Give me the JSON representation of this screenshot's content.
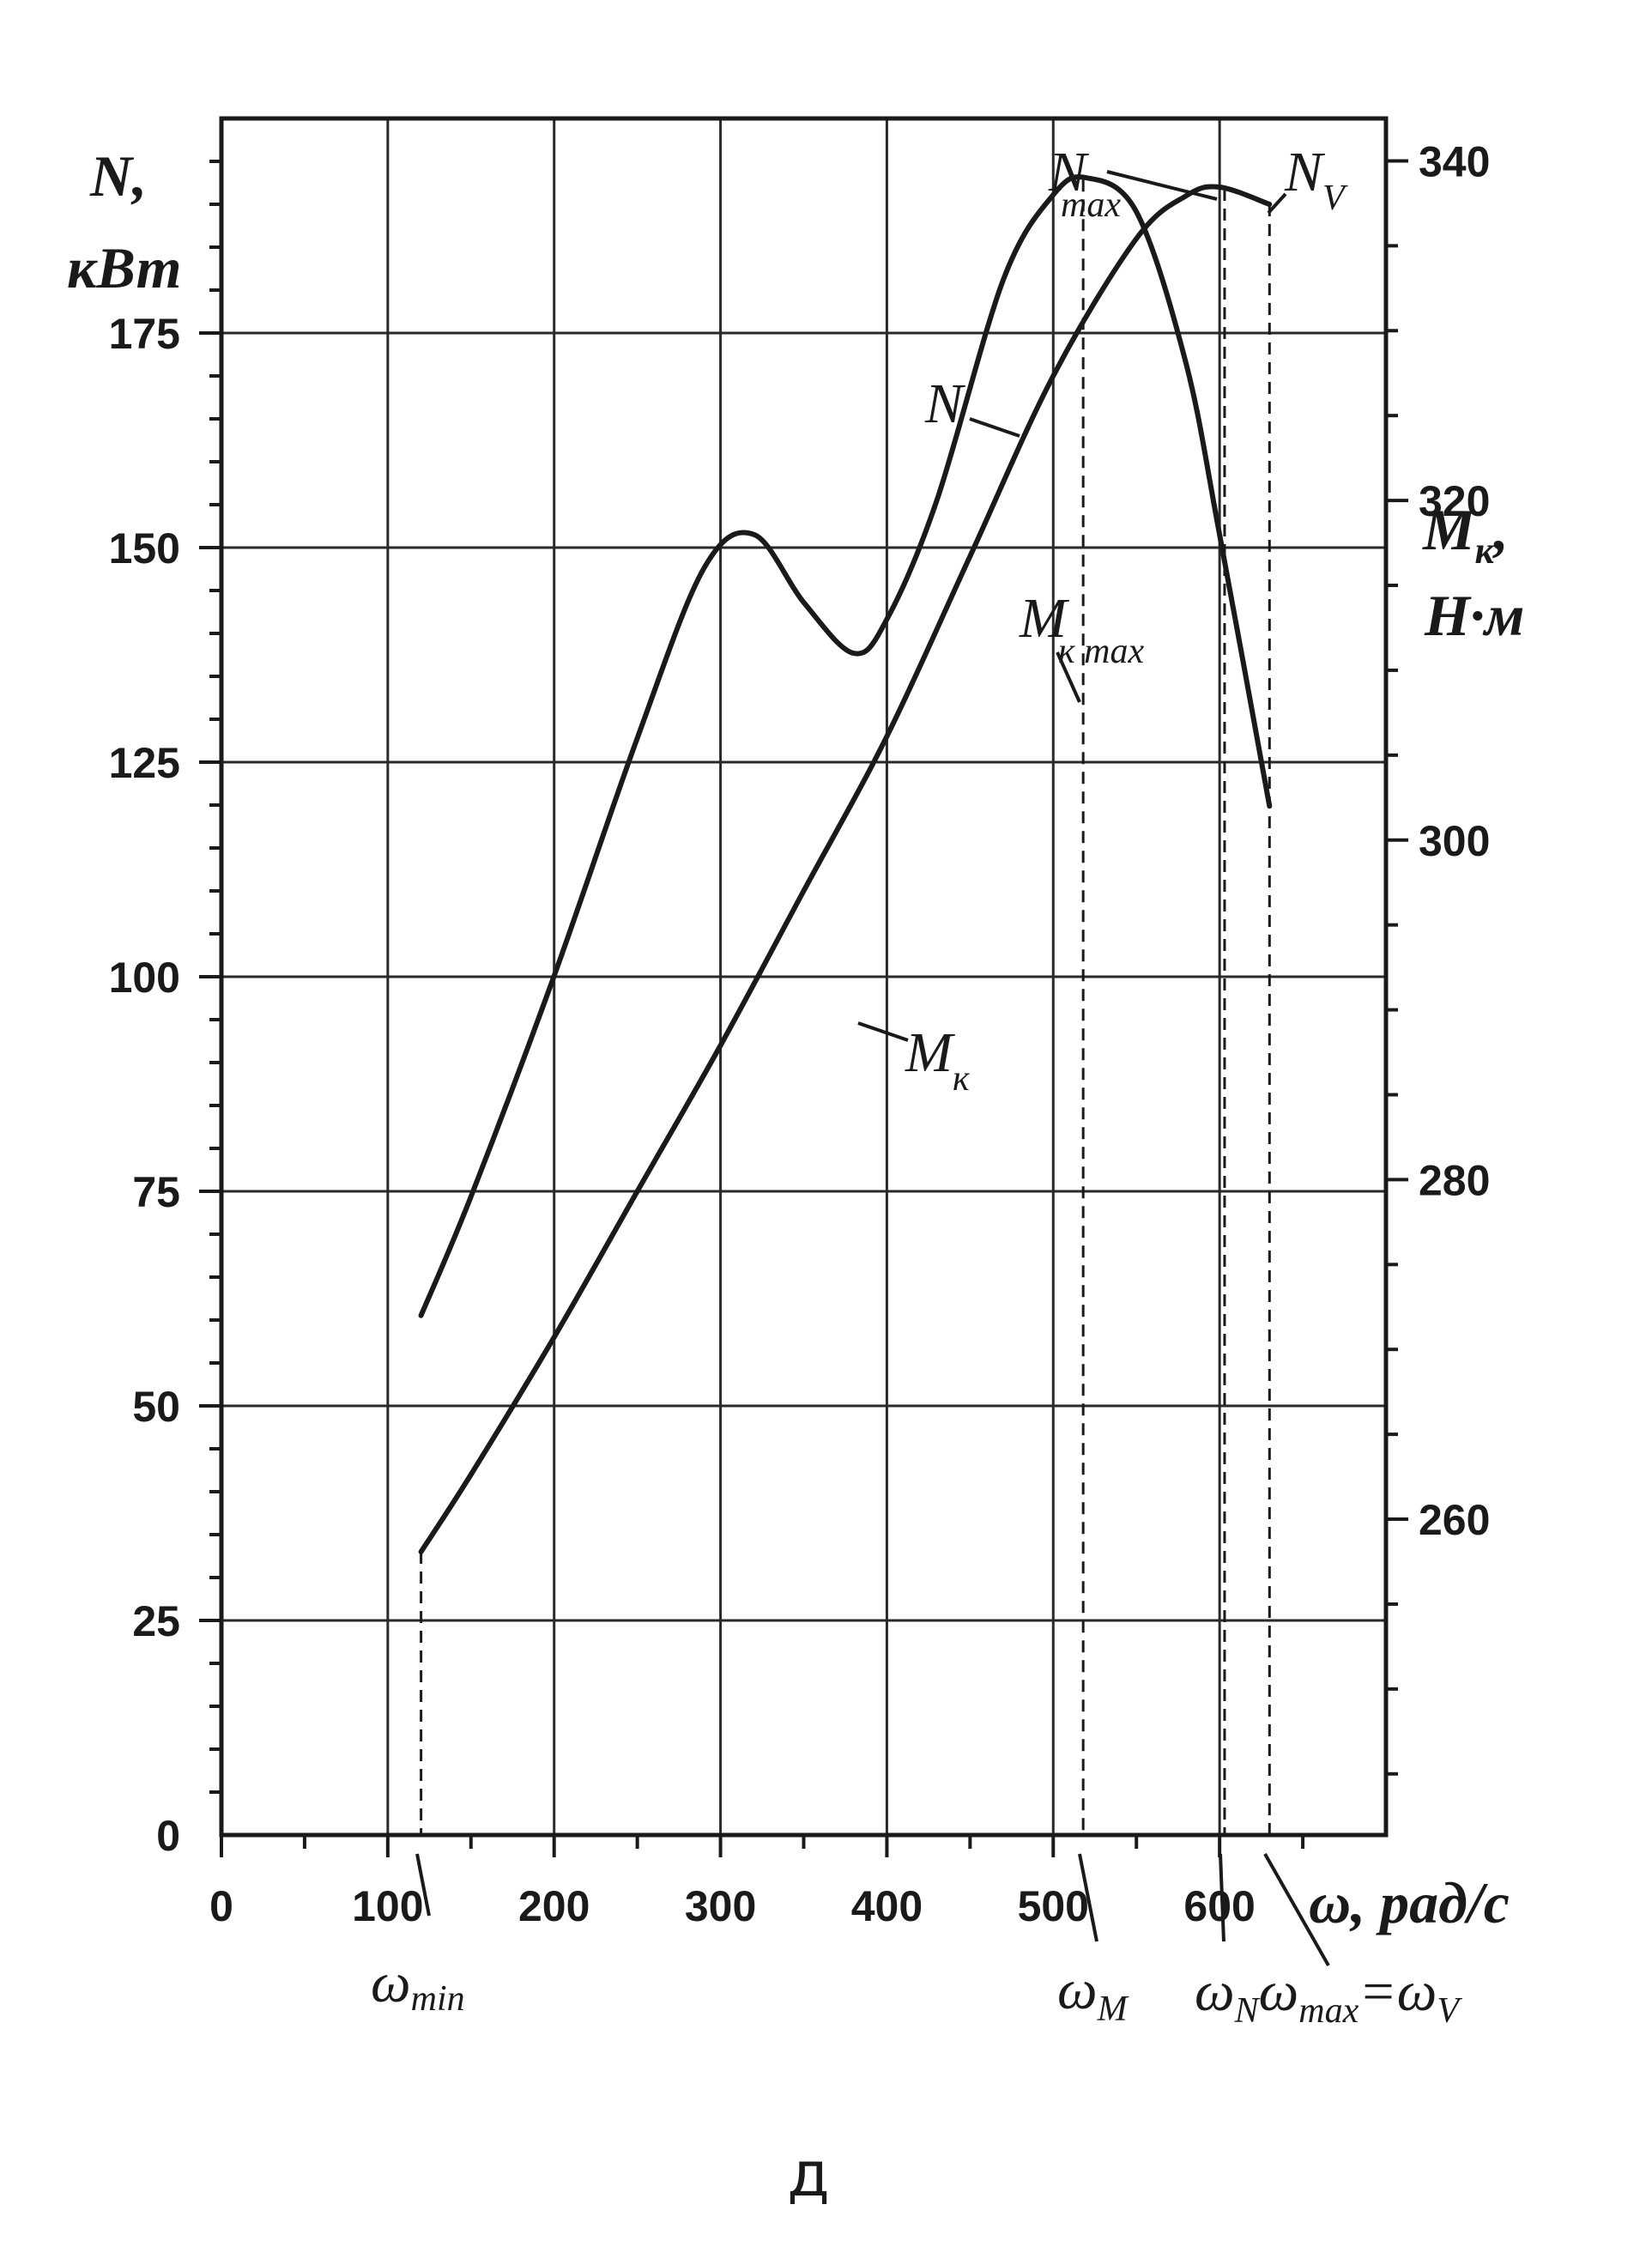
{
  "chart_data": {
    "type": "line",
    "xlabel": "ω, рад/с",
    "ylabel_left": {
      "main": "N",
      "suffix": ",",
      "unit": "кВт"
    },
    "ylabel_right": {
      "main": "M",
      "sub": "к",
      "suffix": ",",
      "unit": "Н·м"
    },
    "x_ticks": [
      0,
      100,
      200,
      300,
      400,
      500,
      600
    ],
    "y_left_ticks": [
      0,
      25,
      50,
      75,
      100,
      125,
      150,
      175
    ],
    "y_right_ticks": [
      260,
      280,
      300,
      320,
      340
    ],
    "xlim": [
      0,
      700
    ],
    "ylim_left": [
      0,
      200
    ],
    "ylim_right": [
      241.4,
      342.5
    ],
    "grid": true,
    "series": [
      {
        "name": "N",
        "axis": "left",
        "points": [
          [
            120,
            33
          ],
          [
            150,
            42
          ],
          [
            200,
            58
          ],
          [
            250,
            75
          ],
          [
            300,
            92
          ],
          [
            350,
            110
          ],
          [
            400,
            128
          ],
          [
            450,
            149
          ],
          [
            500,
            170
          ],
          [
            550,
            186
          ],
          [
            580,
            191
          ],
          [
            600,
            192
          ],
          [
            630,
            190
          ]
        ]
      },
      {
        "name": "Mк",
        "axis": "right",
        "points": [
          [
            120,
            272
          ],
          [
            150,
            279
          ],
          [
            200,
            292
          ],
          [
            250,
            306
          ],
          [
            290,
            316
          ],
          [
            320,
            318
          ],
          [
            350,
            314
          ],
          [
            380,
            311
          ],
          [
            400,
            313
          ],
          [
            430,
            320
          ],
          [
            470,
            333
          ],
          [
            500,
            338
          ],
          [
            520,
            339
          ],
          [
            550,
            337
          ],
          [
            580,
            328
          ],
          [
            600,
            318
          ],
          [
            630,
            302
          ]
        ]
      }
    ],
    "annotations": {
      "N_curve": "N",
      "M_curve": {
        "main": "M",
        "sub": "к"
      },
      "N_max": {
        "main": "N",
        "sub": "max"
      },
      "N_V": {
        "main": "N",
        "sub": "V"
      },
      "M_max": {
        "main": "M",
        "sub": "к max"
      },
      "omega_min": {
        "main": "ω",
        "sub": "min"
      },
      "omega_M": {
        "main": "ω",
        "sub": "M"
      },
      "omega_N_max_V": {
        "a": "ω",
        "a_sub": "N",
        "b": "ω",
        "b_sub": "max",
        "eq": "=",
        "c": "ω",
        "c_sub": "V"
      }
    },
    "marker_lines": [
      {
        "x": 120,
        "to_series": "N"
      },
      {
        "x": 518,
        "to_series": "Mк"
      },
      {
        "x": 603,
        "to_series": "N"
      },
      {
        "x": 630,
        "to_series": "N"
      }
    ]
  },
  "caption": "д"
}
